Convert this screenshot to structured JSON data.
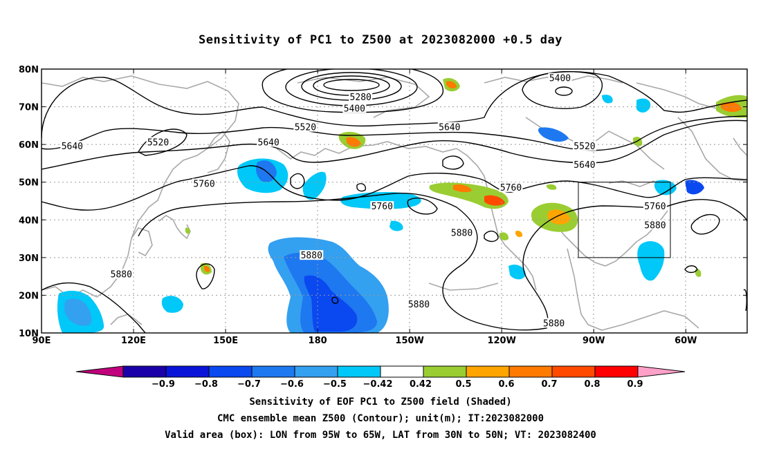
{
  "title": "Sensitivity of PC1 to Z500 at 2023082000 +0.5 day",
  "captions": {
    "line1": "Sensitivity of EOF PC1 to Z500 field (Shaded)",
    "line2": "CMC ensemble mean Z500 (Contour); unit(m); IT:2023082000",
    "line3": "Valid area (box): LON from 95W to 65W, LAT from 30N to 50N; VT: 2023082400"
  },
  "map": {
    "lat_labels": [
      "80N",
      "70N",
      "60N",
      "50N",
      "40N",
      "30N",
      "20N",
      "10N"
    ],
    "lon_labels": [
      "90E",
      "120E",
      "150E",
      "180",
      "150W",
      "120W",
      "90W",
      "60W"
    ],
    "lon_range": [
      90,
      320
    ],
    "lat_range": [
      10,
      80
    ],
    "valid_box": {
      "lon": [
        265,
        295
      ],
      "lat": [
        30,
        50
      ]
    },
    "contour_labels": [
      {
        "text": "5400",
        "lon": 259,
        "lat": 77.5
      },
      {
        "text": "5280",
        "lon": 194,
        "lat": 72.5
      },
      {
        "text": "5400",
        "lon": 192,
        "lat": 69.5
      },
      {
        "text": "5520",
        "lon": 176,
        "lat": 64.5
      },
      {
        "text": "5640",
        "lon": 223,
        "lat": 64.5
      },
      {
        "text": "5640",
        "lon": 100,
        "lat": 59.5
      },
      {
        "text": "5520",
        "lon": 128,
        "lat": 60.5
      },
      {
        "text": "5640",
        "lon": 164,
        "lat": 60.5
      },
      {
        "text": "5520",
        "lon": 267,
        "lat": 59.5
      },
      {
        "text": "5640",
        "lon": 267,
        "lat": 54.5
      },
      {
        "text": "5760",
        "lon": 143,
        "lat": 49.5
      },
      {
        "text": "5760",
        "lon": 243,
        "lat": 48.5
      },
      {
        "text": "5760",
        "lon": 201,
        "lat": 43.5
      },
      {
        "text": "5760",
        "lon": 290,
        "lat": 43.5
      },
      {
        "text": "5880",
        "lon": 227,
        "lat": 36.5
      },
      {
        "text": "5880",
        "lon": 290,
        "lat": 38.5
      },
      {
        "text": "5880",
        "lon": 178,
        "lat": 30.5
      },
      {
        "text": "5880",
        "lon": 116,
        "lat": 25.5
      },
      {
        "text": "5880",
        "lon": 213,
        "lat": 17.5
      },
      {
        "text": "5880",
        "lon": 257,
        "lat": 12.5
      }
    ]
  },
  "colorbar": {
    "labels": [
      "−0.9",
      "−0.8",
      "−0.7",
      "−0.6",
      "−0.5",
      "−0.42",
      "0.42",
      "0.5",
      "0.6",
      "0.7",
      "0.8",
      "0.9"
    ],
    "colors": [
      "#1a00a8",
      "#0a14d8",
      "#0a48f0",
      "#1e78f0",
      "#34a0f0",
      "#00c8f8",
      "#ffffff",
      "#9acd32",
      "#ffa500",
      "#ff7a00",
      "#ff4a00",
      "#ff0000"
    ],
    "left_arrow": "#c0007c",
    "right_arrow": "#ffa0c8"
  }
}
